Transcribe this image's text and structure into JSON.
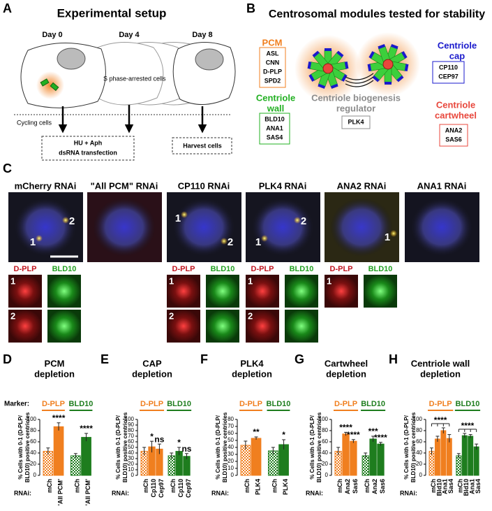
{
  "panel_a": {
    "letter": "A",
    "title": "Experimental setup",
    "days": [
      "Day 0",
      "Day 4",
      "Day 8"
    ],
    "cell_label": "S phase-arrested cells",
    "cycling": "Cycling cells",
    "boxes": [
      [
        "HU + Aph",
        "dsRNA transfection"
      ],
      [
        "Harvest cells"
      ]
    ]
  },
  "panel_b": {
    "letter": "B",
    "title": "Centrosomal modules tested for stability",
    "modules": [
      {
        "name": [
          "PCM"
        ],
        "color": "#f07f1f",
        "members": [
          "ASL",
          "CNN",
          "D-PLP",
          "SPD2"
        ]
      },
      {
        "name": [
          "Centriole",
          "cap"
        ],
        "color": "#1a1acc",
        "members": [
          "CP110",
          "CEP97"
        ]
      },
      {
        "name": [
          "Centriole",
          "wall"
        ],
        "color": "#22b022",
        "members": [
          "BLD10",
          "ANA1",
          "SAS4"
        ]
      },
      {
        "name": [
          "Centriole biogenesis",
          "regulator"
        ],
        "color": "#8c8c8c",
        "members": [
          "PLK4"
        ]
      },
      {
        "name": [
          "Centriole",
          "cartwheel"
        ],
        "color": "#e8473c",
        "members": [
          "ANA2",
          "SAS6"
        ]
      }
    ]
  },
  "panel_c": {
    "letter": "C",
    "conditions": [
      "mCherry RNAi",
      "\"All PCM\" RNAi",
      "CP110 RNAi",
      "PLK4 RNAi",
      "ANA2 RNAi",
      "ANA1 RNAi"
    ],
    "channels": [
      "D-PLP",
      "BLD10"
    ],
    "labels": [
      "1",
      "2"
    ]
  },
  "chart_data": [
    {
      "type": "bar",
      "letter": "D",
      "title": [
        "PCM",
        "depletion"
      ],
      "marker_label": "Marker:",
      "rnai_label": "RNAi:",
      "ylabel": [
        "% Cells with 0-1 (D-PLP/",
        "BLD10) positive centrioles"
      ],
      "ylim": [
        0,
        100
      ],
      "yticks": [
        0,
        20,
        40,
        60,
        80,
        100
      ],
      "series": [
        {
          "name": "D-PLP",
          "color": "#f07f1f",
          "categories": [
            "mCh",
            "'All PCM'"
          ],
          "values": [
            43,
            87
          ],
          "errors": [
            6,
            7
          ],
          "significance": [
            null,
            "****"
          ]
        },
        {
          "name": "BLD10",
          "color": "#1e7d1e",
          "categories": [
            "mCh",
            "'All PCM'"
          ],
          "values": [
            35,
            68
          ],
          "errors": [
            4,
            7
          ],
          "significance": [
            null,
            "****"
          ]
        }
      ]
    },
    {
      "type": "bar",
      "letter": "E",
      "title": [
        "CAP",
        "depletion"
      ],
      "rnai_label": "RNAi:",
      "ylabel": [
        "% Cells with 0-1 (D-PLP/",
        "BLD10) positive centrioles"
      ],
      "ylim": [
        0,
        100
      ],
      "yticks": [
        0,
        10,
        20,
        30,
        40,
        50,
        60,
        70,
        80,
        90,
        100
      ],
      "series": [
        {
          "name": "D-PLP",
          "color": "#f07f1f",
          "categories": [
            "mCh",
            "Cp110",
            "Cep97"
          ],
          "values": [
            43,
            51,
            47
          ],
          "errors": [
            7,
            10,
            9
          ],
          "significance": [
            null,
            "*",
            "ns"
          ]
        },
        {
          "name": "BLD10",
          "color": "#1e7d1e",
          "categories": [
            "mCh",
            "Cp110",
            "Cep97"
          ],
          "values": [
            35,
            43,
            34
          ],
          "errors": [
            5,
            7,
            5
          ],
          "significance": [
            null,
            "*",
            "ns"
          ]
        }
      ]
    },
    {
      "type": "bar",
      "letter": "F",
      "title": [
        "PLK4",
        "depletion"
      ],
      "rnai_label": "RNAi:",
      "ylabel": [
        "% Cells with 0-1 (D-PLP/",
        "BLD10) positive centrioles"
      ],
      "ylim": [
        0,
        80
      ],
      "yticks": [
        0,
        10,
        20,
        30,
        40,
        50,
        60,
        70,
        80
      ],
      "series": [
        {
          "name": "D-PLP",
          "color": "#f07f1f",
          "categories": [
            "mCh",
            "PLK4"
          ],
          "values": [
            43,
            53
          ],
          "errors": [
            6,
            2
          ],
          "significance": [
            null,
            "**"
          ]
        },
        {
          "name": "BLD10",
          "color": "#1e7d1e",
          "categories": [
            "mCh",
            "PLK4"
          ],
          "values": [
            35,
            44
          ],
          "errors": [
            5,
            7
          ],
          "significance": [
            null,
            "*"
          ]
        }
      ]
    },
    {
      "type": "bar",
      "letter": "G",
      "title": [
        "Cartwheel",
        "depletion"
      ],
      "rnai_label": "RNAi:",
      "ylabel": [
        "% Cells with 0-1 (D-PLP/",
        "BLD10) positive centrioles"
      ],
      "ylim": [
        0,
        100
      ],
      "yticks": [
        0,
        20,
        40,
        60,
        80,
        100
      ],
      "series": [
        {
          "name": "D-PLP",
          "color": "#f07f1f",
          "categories": [
            "mCh",
            "Ana2",
            "Sas6"
          ],
          "values": [
            43,
            74,
            61
          ],
          "errors": [
            7,
            3,
            3
          ],
          "significance": [
            null,
            "****",
            "****"
          ]
        },
        {
          "name": "BLD10",
          "color": "#1e7d1e",
          "categories": [
            "mCh",
            "Ana2",
            "Sas6"
          ],
          "values": [
            35,
            65,
            56
          ],
          "errors": [
            5,
            5,
            3
          ],
          "significance": [
            null,
            "***",
            "****"
          ]
        }
      ]
    },
    {
      "type": "bar",
      "letter": "H",
      "title": [
        "Centriole wall",
        "depletion"
      ],
      "rnai_label": "RNAi:",
      "ylabel": [
        "% Cells with 0-1 (D-PLP/",
        "BLD10) positive centrioles"
      ],
      "ylim": [
        0,
        100
      ],
      "yticks": [
        0,
        20,
        40,
        60,
        80,
        100
      ],
      "series": [
        {
          "name": "D-PLP",
          "color": "#f07f1f",
          "categories": [
            "mCh",
            "Bld10",
            "Ana1",
            "Sas4"
          ],
          "values": [
            43,
            65,
            80,
            66
          ],
          "errors": [
            6,
            5,
            5,
            7
          ],
          "bracket_label": "****"
        },
        {
          "name": "BLD10",
          "color": "#1e7d1e",
          "categories": [
            "mCh",
            "Bld10",
            "Ana1",
            "Sas4"
          ],
          "values": [
            35,
            71,
            70,
            51
          ],
          "errors": [
            4,
            4,
            3,
            5
          ],
          "bracket_label": "****"
        }
      ]
    }
  ]
}
